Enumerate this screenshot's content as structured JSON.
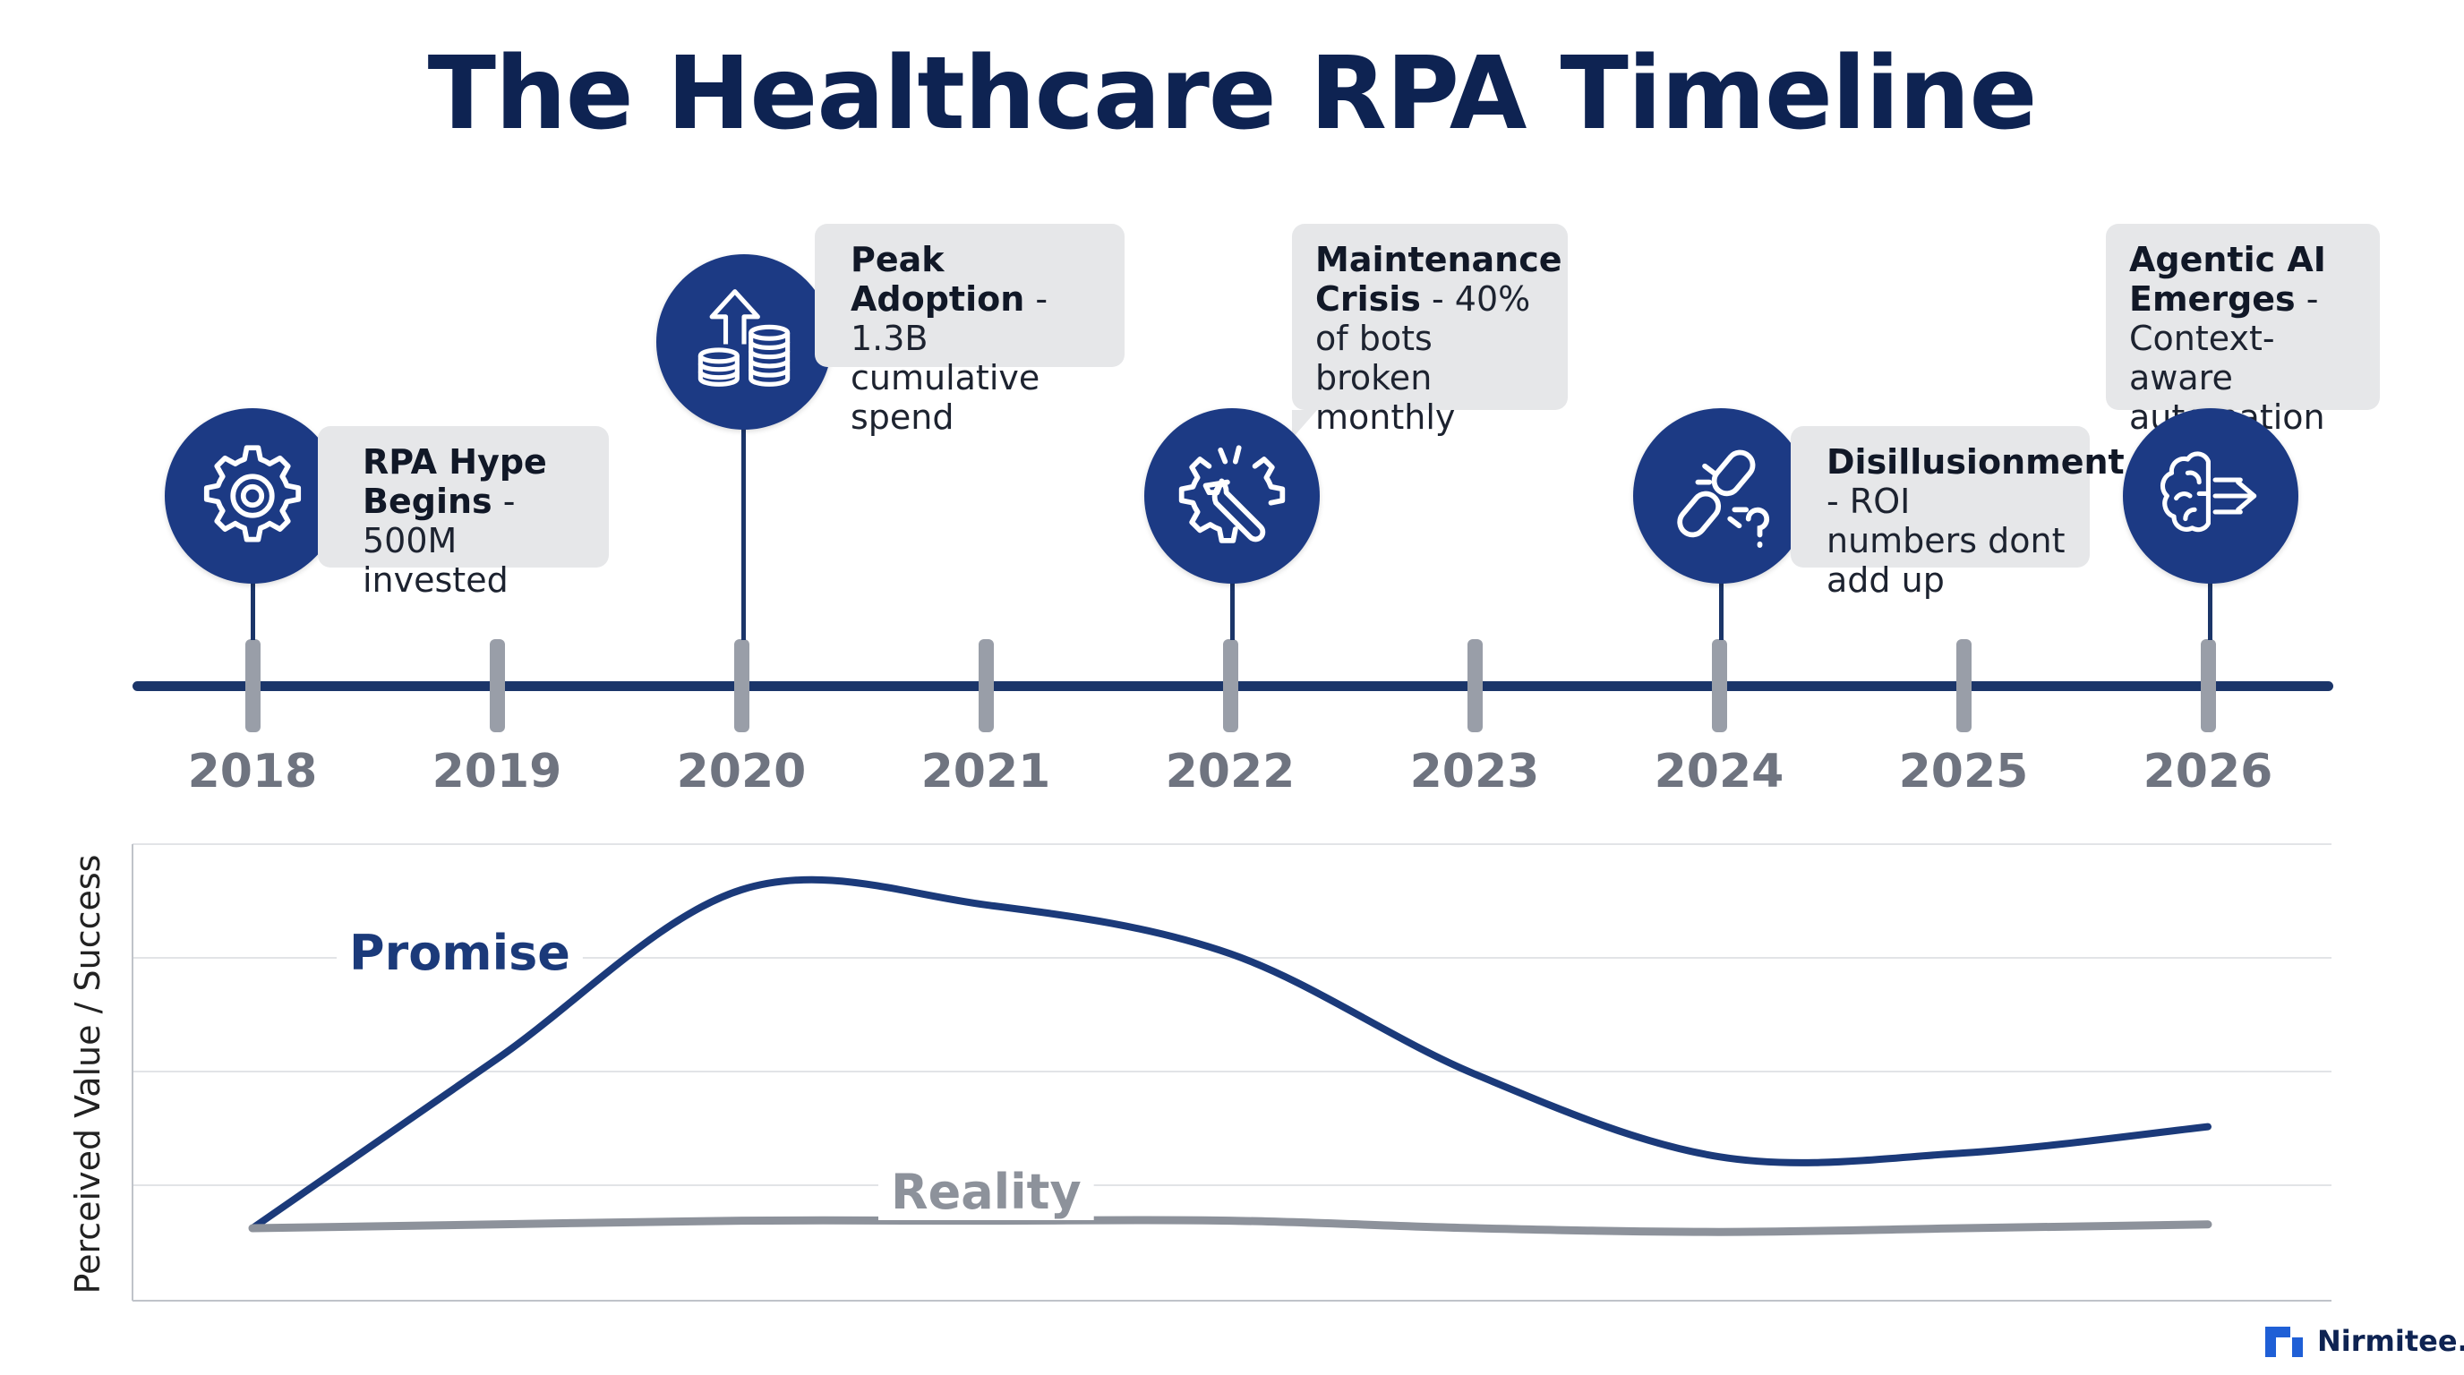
{
  "title": "The Healthcare RPA Timeline",
  "timeline": {
    "years": [
      "2018",
      "2019",
      "2020",
      "2021",
      "2022",
      "2023",
      "2024",
      "2025",
      "2026"
    ],
    "milestones": [
      {
        "year": "2018",
        "icon": "gear-icon",
        "heading": "RPA Hype Begins",
        "detail": "500M invested"
      },
      {
        "year": "2020",
        "icon": "coins-arrow-up-icon",
        "heading": "Peak Adoption",
        "detail": "1.3B cumulative spend"
      },
      {
        "year": "2022",
        "icon": "broken-gear-wrench-icon",
        "heading": "Maintenance Crisis",
        "detail": "40% of bots broken monthly"
      },
      {
        "year": "2024",
        "icon": "broken-link-question-icon",
        "heading": "Disillusionment",
        "detail": "ROI numbers dont add up"
      },
      {
        "year": "2026",
        "icon": "brain-arrow-icon",
        "heading": "Agentic AI Emerges",
        "detail": "Context-aware automation"
      }
    ]
  },
  "chart_data": {
    "type": "line",
    "ylabel": "Perceived Value / Success",
    "x": [
      "2018",
      "2019",
      "2020",
      "2021",
      "2022",
      "2023",
      "2024",
      "2025",
      "2026"
    ],
    "ylim": [
      0,
      10
    ],
    "grid": true,
    "series": [
      {
        "name": "Promise",
        "color": "#1b3a7a",
        "values": [
          0.5,
          5.0,
          9.5,
          9.1,
          7.8,
          4.6,
          2.4,
          2.5,
          3.2
        ]
      },
      {
        "name": "Reality",
        "color": "#8d929b",
        "values": [
          0.5,
          0.6,
          0.7,
          0.7,
          0.7,
          0.5,
          0.4,
          0.5,
          0.6
        ]
      }
    ]
  },
  "brand": {
    "name": "Nirmitee.io",
    "accent": "#1f5fd6"
  },
  "colors": {
    "navy": "#1b3569",
    "circle": "#1c3a84",
    "callout_bg": "#e6e7e9",
    "tick": "#999ea8"
  }
}
